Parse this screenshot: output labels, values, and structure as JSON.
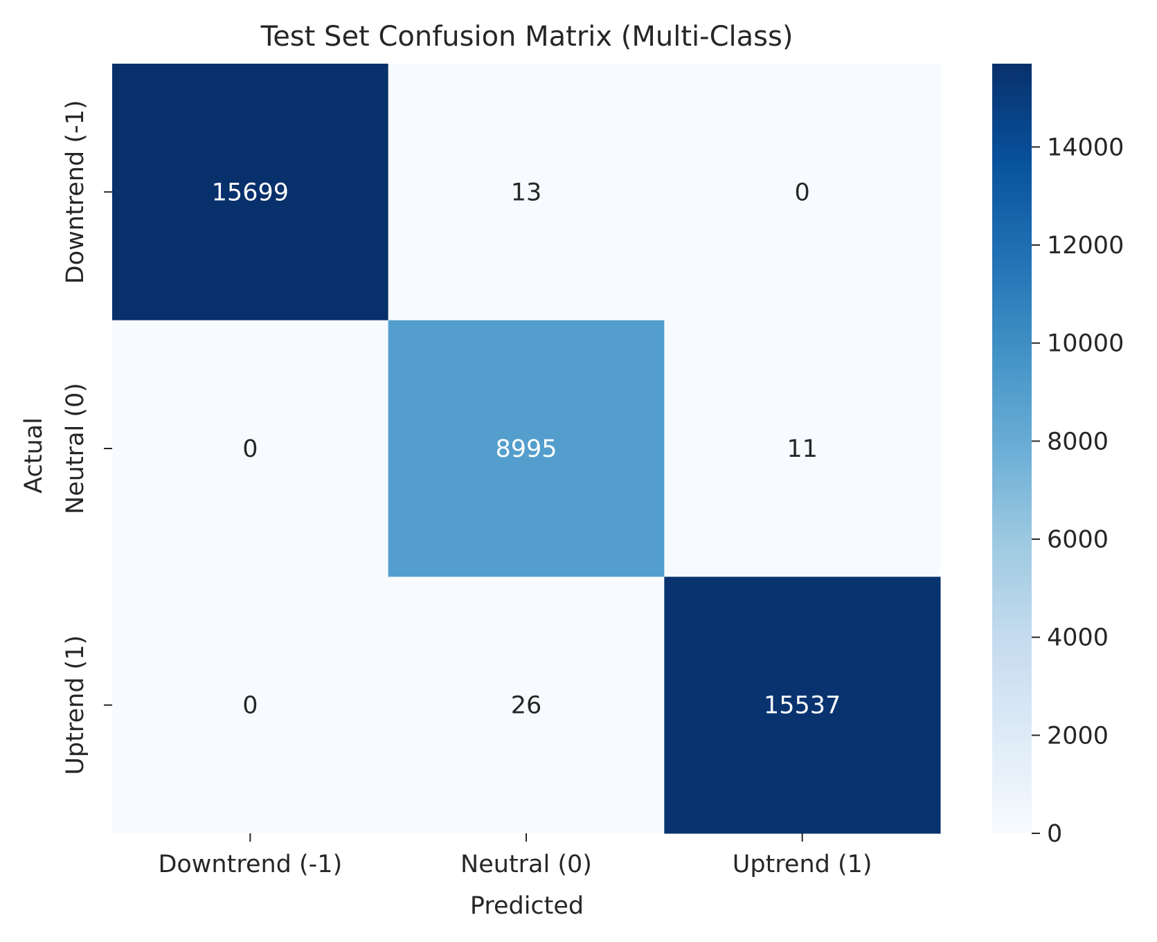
{
  "chart_data": {
    "type": "heatmap",
    "title": "Test Set Confusion Matrix (Multi-Class)",
    "xlabel": "Predicted",
    "ylabel": "Actual",
    "x_categories": [
      "Downtrend (-1)",
      "Neutral (0)",
      "Uptrend (1)"
    ],
    "y_categories": [
      "Downtrend (-1)",
      "Neutral (0)",
      "Uptrend (1)"
    ],
    "matrix": [
      [
        15699,
        13,
        0
      ],
      [
        0,
        8995,
        11
      ],
      [
        0,
        26,
        15537
      ]
    ],
    "colorbar": {
      "colormap": "Blues",
      "vmin": 0,
      "vmax": 15699,
      "ticks": [
        "0",
        "2000",
        "4000",
        "6000",
        "8000",
        "10000",
        "12000",
        "14000"
      ],
      "low_color": "#f7fbff",
      "high_color": "#08306b"
    },
    "grid": false,
    "legend": "colorbar-right"
  }
}
